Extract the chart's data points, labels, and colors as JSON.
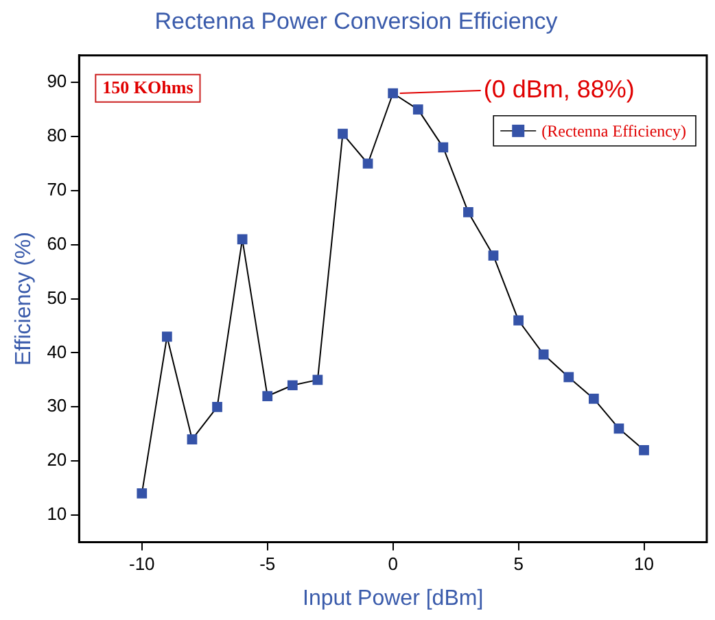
{
  "chart_data": {
    "type": "line",
    "title": "Rectenna Power Conversion Efficiency",
    "xlabel": "Input Power [dBm]",
    "ylabel": "Efficiency (%)",
    "x": [
      -10,
      -9,
      -8,
      -7,
      -6,
      -5,
      -4,
      -3,
      -2,
      -1,
      0,
      1,
      2,
      3,
      4,
      5,
      6,
      7,
      8,
      9,
      10
    ],
    "series": [
      {
        "name": "(Rectenna Efficiency)",
        "color": "#3553a8",
        "values": [
          14,
          43,
          24,
          30,
          61,
          32,
          34,
          35,
          80.5,
          75,
          88,
          85,
          78,
          66,
          58,
          46,
          39.7,
          35.5,
          31.5,
          26,
          22
        ]
      }
    ],
    "xlim": [
      -12.5,
      12.5
    ],
    "xticks": [
      -10,
      -5,
      0,
      5,
      10
    ],
    "ylim": [
      5,
      95
    ],
    "yticks": [
      10,
      20,
      30,
      40,
      50,
      60,
      70,
      80,
      90
    ],
    "grid": false,
    "legend": "top right",
    "marker": "square",
    "line_style": "solid",
    "annotations": [
      "150 KOhms",
      {
        "text": "(0 dBm, 88%)",
        "x": 0,
        "y": 88
      }
    ]
  }
}
